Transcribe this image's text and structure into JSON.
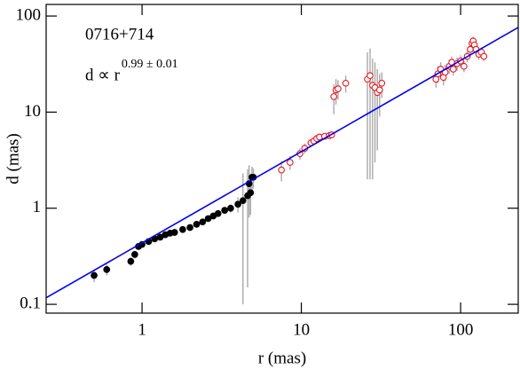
{
  "chart_data": {
    "type": "scatter",
    "annotation": "0716+714",
    "formula": "d ∝ r",
    "exponent": "0.99 ± 0.01",
    "x_label": "r (mas)",
    "y_label": "d (mas)",
    "log_x": true,
    "log_y": true,
    "xlim": [
      0.25,
      230
    ],
    "ylim": [
      0.081,
      132
    ],
    "xticks": [
      1,
      10,
      100
    ],
    "yticks": [
      0.1,
      1,
      10,
      100
    ],
    "series": [
      {
        "type": "scatter",
        "color": "#000000",
        "filled": true,
        "error_color": "#aaaaaa",
        "x": [
          0.5,
          0.6,
          0.85,
          0.9,
          0.95,
          1.0,
          1.1,
          1.2,
          1.3,
          1.4,
          1.5,
          1.6,
          1.8,
          2.0,
          2.2,
          2.4,
          2.6,
          2.8,
          3.0,
          3.3,
          3.6,
          4.0,
          4.3,
          4.6,
          4.8,
          4.7,
          4.9,
          5.0
        ],
        "values": [
          0.2,
          0.23,
          0.28,
          0.33,
          0.4,
          0.42,
          0.45,
          0.48,
          0.5,
          0.53,
          0.55,
          0.56,
          0.6,
          0.63,
          0.68,
          0.72,
          0.78,
          0.83,
          0.88,
          0.95,
          1.0,
          1.1,
          1.2,
          1.35,
          1.45,
          1.8,
          2.1,
          2.1
        ],
        "errors": [
          0.03,
          0.03,
          0.03,
          0.03,
          0.02,
          0.02,
          0.02,
          0.02,
          0.02,
          0.02,
          0.02,
          0.02,
          0.02,
          0.02,
          0.03,
          0.03,
          0.03,
          0.04,
          0.05,
          0.08,
          0.1,
          0.2,
          1.1,
          1.2,
          0.6,
          1.0,
          0.6,
          0.5
        ]
      },
      {
        "type": "scatter",
        "color": "#e8141c",
        "filled": false,
        "error_color": "#aaaaaa",
        "x": [
          7.5,
          8.5,
          9.8,
          10.5,
          11.5,
          12,
          12.5,
          13,
          14,
          15,
          15.5,
          16,
          16.5,
          17,
          19,
          26,
          27,
          28,
          29,
          30,
          31,
          32,
          70,
          72,
          75,
          78,
          80,
          85,
          88,
          90,
          95,
          100,
          105,
          110,
          115,
          118,
          120,
          122,
          125,
          130,
          135,
          140
        ],
        "values": [
          2.5,
          3.0,
          3.7,
          4.2,
          4.8,
          5.0,
          5.3,
          5.5,
          5.6,
          5.7,
          5.8,
          14.5,
          17,
          17.5,
          20,
          22,
          24,
          19,
          18,
          16,
          17,
          20,
          22,
          25,
          28,
          23,
          26,
          30,
          33,
          28,
          32,
          34,
          30,
          38,
          45,
          52,
          55,
          50,
          45,
          40,
          42,
          38
        ],
        "errors": [
          0.6,
          0.5,
          0.5,
          0.5,
          0.4,
          0.4,
          0.4,
          0.4,
          0.4,
          0.4,
          0.4,
          5,
          5,
          4,
          4,
          20,
          22,
          17,
          15,
          12,
          8,
          6,
          4,
          5,
          5,
          4,
          5,
          5,
          5,
          4,
          5,
          5,
          4,
          5,
          6,
          6,
          6,
          6,
          5,
          5,
          5,
          4
        ]
      },
      {
        "type": "line",
        "color": "#0000ee",
        "x": [
          0.25,
          230
        ],
        "values": [
          0.117,
          76
        ]
      }
    ]
  }
}
